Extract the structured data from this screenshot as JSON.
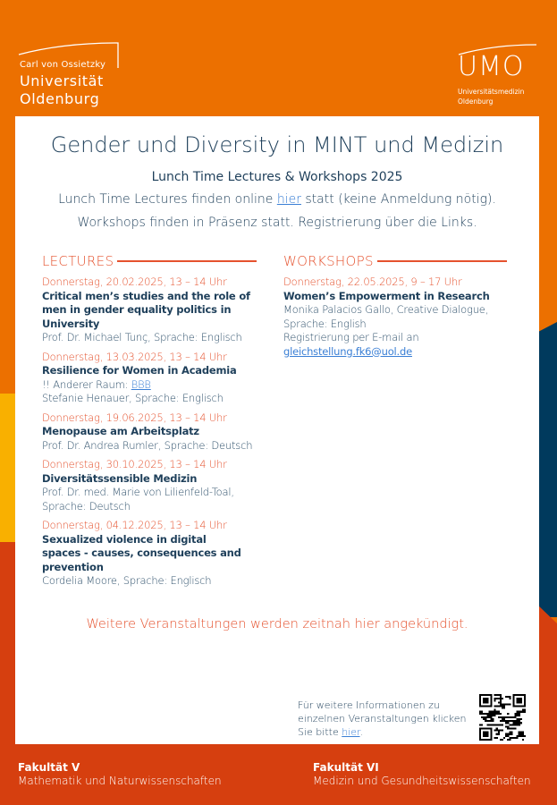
{
  "logos": {
    "university": {
      "line1": "Carl von Ossietzky",
      "line2": "Universität",
      "line3": "Oldenburg"
    },
    "umo": {
      "acronym": "UMO",
      "line1": "Universitätsmedizin",
      "line2": "Oldenburg"
    }
  },
  "header": {
    "title": "Gender und Diversity in MINT und Medizin",
    "subtitle": "Lunch Time Lectures & Workshops 2025",
    "intro1_pre": "Lunch Time Lectures finden online ",
    "intro1_link": "hier",
    "intro1_post": " statt (keine Anmeldung nötig).",
    "intro2": "Workshops finden in Präsenz statt. Registrierung über die Links."
  },
  "lectures": {
    "heading": "LECTURES",
    "items": [
      {
        "date": "Donnerstag, 20.02.2025, 13 – 14 Uhr",
        "title": "Critical men’s studies and the role of men in gender equality politics in University",
        "note_pre": "",
        "note_link": "",
        "speaker": "Prof. Dr. Michael Tunç, Sprache: Englisch"
      },
      {
        "date": "Donnerstag, 13.03.2025, 13 – 14 Uhr",
        "title": "Resilience for Women in Academia",
        "note_pre": "!! Anderer Raum: ",
        "note_link": "BBB",
        "speaker": "Stefanie Henauer, Sprache: Englisch"
      },
      {
        "date": "Donnerstag, 19.06.2025, 13 – 14 Uhr",
        "title": "Menopause am Arbeitsplatz",
        "note_pre": "",
        "note_link": "",
        "speaker": "Prof. Dr. Andrea Rumler, Sprache: Deutsch"
      },
      {
        "date": "Donnerstag, 30.10.2025, 13 – 14 Uhr",
        "title": "Diversitätssensible Medizin",
        "note_pre": "",
        "note_link": "",
        "speaker": "Prof. Dr. med. Marie von Lilienfeld-Toal, Sprache: Deutsch"
      },
      {
        "date": "Donnerstag, 04.12.2025, 13 – 14 Uhr",
        "title": "Sexualized violence in digital spaces - causes, consequences and prevention",
        "note_pre": "",
        "note_link": "",
        "speaker": "Cordelia Moore, Sprache: Englisch"
      }
    ]
  },
  "workshops": {
    "heading": "WORKSHOPS",
    "items": [
      {
        "date": "Donnerstag, 22.05.2025, 9 – 17 Uhr",
        "title": "Women’s Empowerment in Research",
        "speaker": "Monika Palacios Gallo, Creative Dialogue, Sprache: English",
        "registration": "Registrierung per E-mail an",
        "email": "gleichstellung.fk6@uol.de"
      }
    ]
  },
  "announcement": "Weitere Veranstaltungen werden zeitnah hier angekündigt.",
  "info": {
    "text_pre": "Für weitere Informationen zu einzelnen Veranstaltungen klicken Sie bitte ",
    "link": "hier",
    "text_post": "."
  },
  "footer": {
    "faculty5": {
      "name": "Fakultät V",
      "desc": "Mathematik und Naturwissenschaften"
    },
    "faculty6": {
      "name": "Fakultät VI",
      "desc": "Medizin und  Gesundheitswissenschaften"
    }
  },
  "colors": {
    "orange": "#EC7000",
    "red": "#D63F0F",
    "navy": "#003A5D",
    "yellow": "#F9B000",
    "accent_text": "#E5522E",
    "body_text": "#1E3F5A",
    "link": "#3A7FD5"
  }
}
